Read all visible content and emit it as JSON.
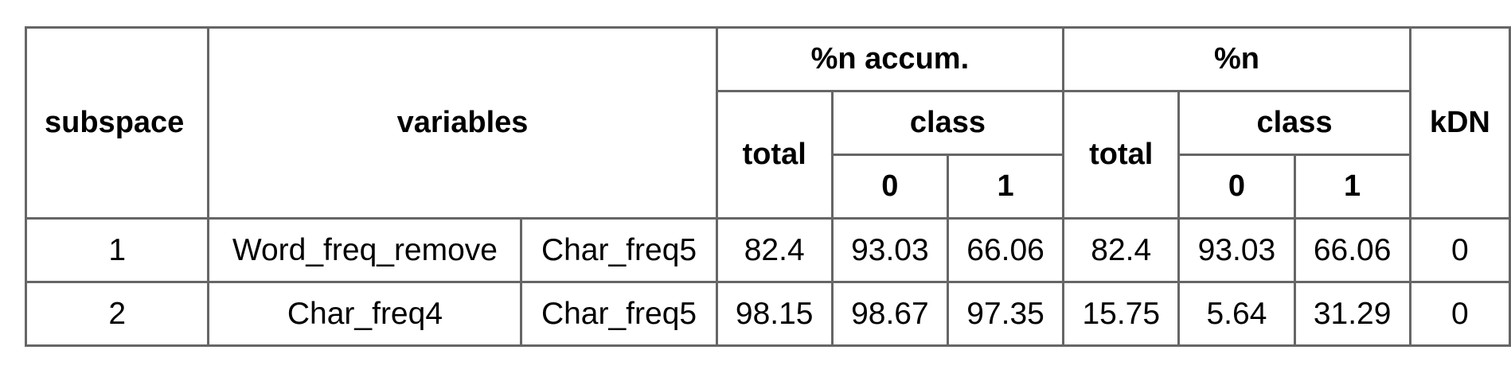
{
  "table": {
    "headers": {
      "subspace": "subspace",
      "variables": "variables",
      "n_accum": "%n accum.",
      "n": "%n",
      "kdn": "kDN",
      "total": "total",
      "class": "class",
      "class_0": "0",
      "class_1": "1"
    },
    "rows": [
      {
        "subspace": "1",
        "var1": "Word_freq_remove",
        "var2": "Char_freq5",
        "accum_total": "82.4",
        "accum_class0": "93.03",
        "accum_class1": "66.06",
        "n_total": "82.4",
        "n_class0": "93.03",
        "n_class1": "66.06",
        "kdn": "0"
      },
      {
        "subspace": "2",
        "var1": "Char_freq4",
        "var2": "Char_freq5",
        "accum_total": "98.15",
        "accum_class0": "98.67",
        "accum_class1": "97.35",
        "n_total": "15.75",
        "n_class0": "5.64",
        "n_class1": "31.29",
        "kdn": "0"
      }
    ]
  },
  "colors": {
    "border": "#666666",
    "text": "#000000",
    "background": "#ffffff"
  }
}
